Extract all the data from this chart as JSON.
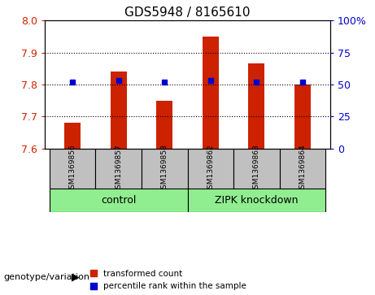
{
  "title": "GDS5948 / 8165610",
  "samples": [
    "GSM1369856",
    "GSM1369857",
    "GSM1369858",
    "GSM1369862",
    "GSM1369863",
    "GSM1369864"
  ],
  "transformed_counts": [
    7.68,
    7.84,
    7.75,
    7.95,
    7.865,
    7.8
  ],
  "percentile_ranks": [
    52,
    53,
    52,
    53,
    52,
    52
  ],
  "ylim_left": [
    7.6,
    8.0
  ],
  "ylim_right": [
    0,
    100
  ],
  "yticks_left": [
    7.6,
    7.7,
    7.8,
    7.9,
    8.0
  ],
  "yticks_right": [
    0,
    25,
    50,
    75,
    100
  ],
  "groups": [
    {
      "label": "control",
      "samples": [
        0,
        1,
        2
      ],
      "color": "#90EE90"
    },
    {
      "label": "ZIPK knockdown",
      "samples": [
        3,
        4,
        5
      ],
      "color": "#90EE90"
    }
  ],
  "bar_color": "#CC2200",
  "dot_color": "#0000CC",
  "bar_base": 7.6,
  "right_axis_color": "#0000CC",
  "left_axis_color": "#CC2200",
  "bg_plot": "#FFFFFF",
  "bg_label": "#C0C0C0",
  "bg_group": "#90EE90",
  "group_label_fontsize": 9,
  "xlabel_fontsize": 8,
  "title_fontsize": 11,
  "tick_label_color_left": "#CC2200",
  "tick_label_color_right": "#0000CC",
  "genotype_label": "genotype/variation",
  "legend_items": [
    "transformed count",
    "percentile rank within the sample"
  ]
}
